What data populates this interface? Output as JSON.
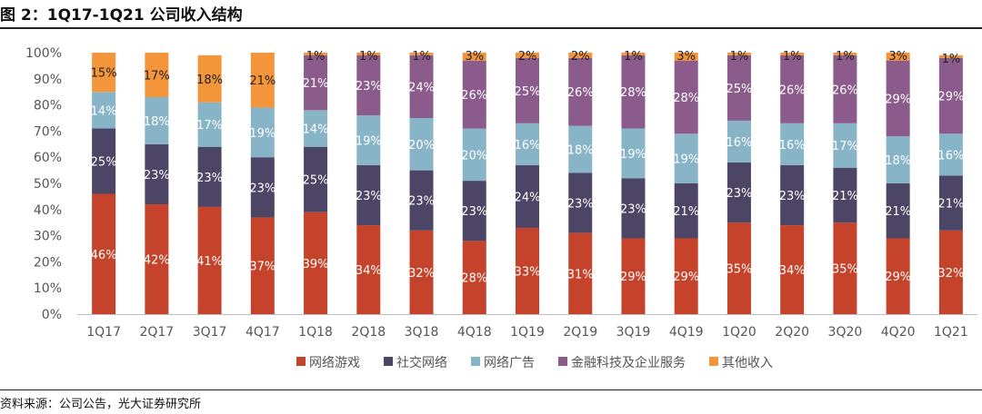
{
  "figure_title": "图 2：1Q17-1Q21 公司收入结构",
  "source_note": "资料来源：公司公告，光大证券研究所",
  "chart_data": {
    "type": "bar",
    "stacked": true,
    "title": "图 2：1Q17-1Q21 公司收入结构",
    "categories": [
      "1Q17",
      "2Q17",
      "3Q17",
      "4Q17",
      "1Q18",
      "2Q18",
      "3Q18",
      "4Q18",
      "1Q19",
      "2Q19",
      "3Q19",
      "4Q19",
      "1Q20",
      "2Q20",
      "3Q20",
      "4Q20",
      "1Q21"
    ],
    "ylim": [
      0,
      100
    ],
    "yticks": [
      "0%",
      "10%",
      "20%",
      "30%",
      "40%",
      "50%",
      "60%",
      "70%",
      "80%",
      "90%",
      "100%"
    ],
    "legend_position": "bottom",
    "series": [
      {
        "name": "网络游戏",
        "color": "#c5432b",
        "label_color": "#ffffff",
        "values": [
          46,
          42,
          41,
          37,
          39,
          34,
          32,
          28,
          33,
          31,
          29,
          29,
          35,
          34,
          35,
          29,
          32
        ],
        "labels": [
          "46%",
          "42%",
          "41%",
          "37%",
          "39%",
          "34%",
          "32%",
          "28%",
          "33%",
          "31%",
          "29%",
          "29%",
          "35%",
          "34%",
          "35%",
          "29%",
          "32%"
        ]
      },
      {
        "name": "社交网络",
        "color": "#4d4565",
        "label_color": "#ffffff",
        "values": [
          25,
          23,
          23,
          23,
          25,
          23,
          23,
          23,
          24,
          23,
          23,
          21,
          23,
          23,
          21,
          21,
          21
        ],
        "labels": [
          "25%",
          "23%",
          "23%",
          "23%",
          "25%",
          "23%",
          "23%",
          "23%",
          "24%",
          "23%",
          "23%",
          "21%",
          "23%",
          "23%",
          "21%",
          "21%",
          "21%"
        ]
      },
      {
        "name": "网络广告",
        "color": "#88b4c8",
        "label_color": "#ffffff",
        "values": [
          14,
          18,
          17,
          19,
          14,
          19,
          20,
          20,
          16,
          18,
          19,
          19,
          16,
          16,
          17,
          18,
          16
        ],
        "labels": [
          "14%",
          "18%",
          "17%",
          "19%",
          "14%",
          "19%",
          "20%",
          "20%",
          "16%",
          "18%",
          "19%",
          "19%",
          "16%",
          "16%",
          "17%",
          "18%",
          "16%"
        ]
      },
      {
        "name": "金融科技及企业服务",
        "color": "#8b5b8c",
        "label_color": "#ffffff",
        "values": [
          0,
          0,
          0,
          0,
          21,
          23,
          24,
          26,
          25,
          26,
          28,
          28,
          25,
          26,
          26,
          29,
          29
        ],
        "labels": [
          "0%",
          "0%",
          "0%",
          "0%",
          "21%",
          "23%",
          "24%",
          "26%",
          "25%",
          "26%",
          "28%",
          "28%",
          "25%",
          "26%",
          "26%",
          "29%",
          "29%"
        ]
      },
      {
        "name": "其他收入",
        "color": "#f3953a",
        "label_color": "#222222",
        "values": [
          15,
          17,
          18,
          21,
          1,
          1,
          1,
          3,
          2,
          2,
          1,
          3,
          1,
          1,
          1,
          3,
          1
        ],
        "labels": [
          "15%",
          "17%",
          "18%",
          "21%",
          "1%",
          "1%",
          "1%",
          "3%",
          "2%",
          "2%",
          "1%",
          "3%",
          "1%",
          "1%",
          "1%",
          "3%",
          "1%"
        ]
      }
    ]
  }
}
